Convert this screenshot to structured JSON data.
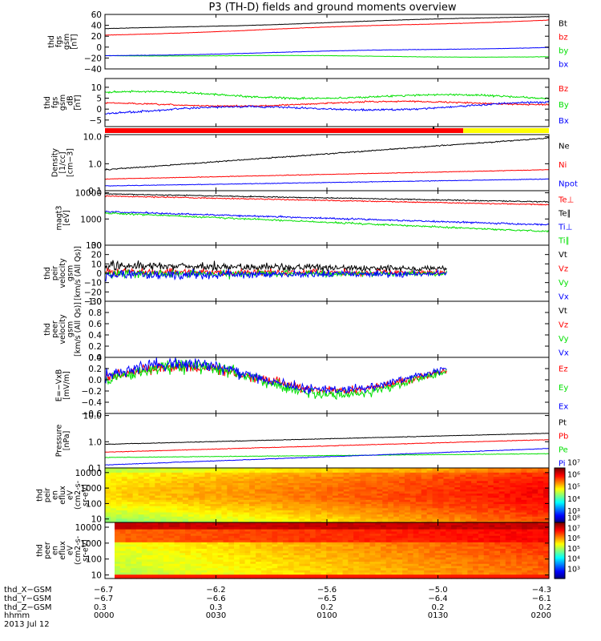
{
  "title": "P3 (TH-D) fields and ground moments overview",
  "colors": {
    "black": "#000000",
    "red": "#ff0000",
    "green": "#00e000",
    "blue": "#0000ff",
    "yellow": "#ffff00"
  },
  "chart_data": [
    {
      "type": "line",
      "ylabel": [
        "thd",
        "fgs",
        "gsm",
        "[nT]"
      ],
      "yticks": [
        "60",
        "40",
        "20",
        "0",
        "−20",
        "−40"
      ],
      "ylim": [
        -40,
        60
      ],
      "scale": "linear",
      "series": [
        {
          "name": "Bt",
          "color": "black",
          "start": 33,
          "end": 57,
          "noise": 0.3
        },
        {
          "name": "bz",
          "color": "red",
          "start": 22,
          "end": 50,
          "noise": 0.3
        },
        {
          "name": "by",
          "color": "green",
          "start": -15,
          "end": -18,
          "noise": 0.3
        },
        {
          "name": "bx",
          "color": "blue",
          "start": -16,
          "end": 0,
          "noise": 0.3
        }
      ]
    },
    {
      "type": "line",
      "ylabel": [
        "thd",
        "fgs",
        "gsm",
        "_dB",
        "[nT]"
      ],
      "yticks": [
        "10",
        "5",
        "0",
        "−5"
      ],
      "ylim": [
        -8,
        14
      ],
      "scale": "linear",
      "series": [
        {
          "name": "Bz",
          "color": "red",
          "start": 2,
          "end": 3,
          "noise": 0.3
        },
        {
          "name": "By",
          "color": "green",
          "start": 7,
          "end": 5,
          "noise": 0.4
        },
        {
          "name": "Bx",
          "color": "blue",
          "start": -1,
          "end": 2,
          "noise": 0.4
        }
      ]
    },
    {
      "type": "line",
      "ylabel": [
        "Density",
        "[1/cc]",
        "[cm−3]"
      ],
      "yticks": [
        "10.0",
        "1.0",
        "0.1"
      ],
      "ylim": [
        0.1,
        12
      ],
      "scale": "log",
      "series": [
        {
          "name": "Ne",
          "color": "black",
          "start": 0.6,
          "end": 9.0,
          "noise": 0.02
        },
        {
          "name": "Ni",
          "color": "red",
          "start": 0.27,
          "end": 0.6,
          "noise": 0.01
        },
        {
          "name": "Npot",
          "color": "blue",
          "start": 0.15,
          "end": 0.27,
          "noise": 0.01
        }
      ]
    },
    {
      "type": "line",
      "ylabel": [
        "magt3",
        "[eV]"
      ],
      "yticks": [
        "10000",
        "1000",
        "100"
      ],
      "ylim": [
        100,
        12000
      ],
      "scale": "log",
      "series": [
        {
          "name": "Te⊥",
          "color": "red",
          "start": 7500,
          "end": 3500,
          "noise": 0.02
        },
        {
          "name": "Te∥",
          "color": "black",
          "start": 9000,
          "end": 4500,
          "noise": 0.02
        },
        {
          "name": "Ti⊥",
          "color": "blue",
          "start": 1900,
          "end": 600,
          "noise": 0.03
        },
        {
          "name": "Ti∥",
          "color": "green",
          "start": 1700,
          "end": 330,
          "noise": 0.03
        }
      ]
    },
    {
      "type": "line",
      "ylabel": [
        "thd",
        "peir",
        "velocity",
        "gsm",
        "[km/s (All Qs)]"
      ],
      "yticks": [
        "30",
        "20",
        "10",
        "0",
        "−10",
        "−20",
        "−30"
      ],
      "ylim": [
        -30,
        30
      ],
      "scale": "linear",
      "data_end": 0.77,
      "series": [
        {
          "name": "Vt",
          "color": "black",
          "start": 8,
          "end": 4,
          "noise": 3.5
        },
        {
          "name": "Vz",
          "color": "red",
          "start": 1,
          "end": 1,
          "noise": 3.0
        },
        {
          "name": "Vy",
          "color": "green",
          "start": -1,
          "end": 0,
          "noise": 3.0
        },
        {
          "name": "Vx",
          "color": "blue",
          "start": -2,
          "end": 0,
          "noise": 3.5
        }
      ]
    },
    {
      "type": "line",
      "ylabel": [
        "thd",
        "peer",
        "velocity",
        "gsm",
        "[km/s (All Qs)]"
      ],
      "yticks": [
        "1.0",
        "0.8",
        "0.6",
        "0.4",
        "0.2",
        "0.0"
      ],
      "ylim": [
        0,
        1
      ],
      "scale": "linear",
      "series": [
        {
          "name": "Vt",
          "color": "black",
          "empty": true
        },
        {
          "name": "Vz",
          "color": "red",
          "empty": true
        },
        {
          "name": "Vy",
          "color": "green",
          "empty": true
        },
        {
          "name": "Vx",
          "color": "blue",
          "empty": true
        }
      ]
    },
    {
      "type": "line",
      "ylabel": [
        "E=−VxB",
        "[mV/m]"
      ],
      "yticks": [
        "0.4",
        "0.2",
        "0.0",
        "−0.2",
        "−0.4",
        "−0.6"
      ],
      "ylim": [
        -0.6,
        0.4
      ],
      "scale": "linear",
      "data_end": 0.77,
      "series": [
        {
          "name": "Ez",
          "color": "red",
          "start": 0.02,
          "end": 0.02,
          "noise": 0.07
        },
        {
          "name": "Ey",
          "color": "green",
          "start": -0.02,
          "end": 0.0,
          "noise": 0.09
        },
        {
          "name": "Ex",
          "color": "blue",
          "start": 0.05,
          "end": 0.05,
          "noise": 0.08
        }
      ]
    },
    {
      "type": "line",
      "ylabel": [
        "Pressure",
        "[nPa]"
      ],
      "yticks": [
        "10.0",
        "1.0",
        "0.1"
      ],
      "ylim": [
        0.1,
        12
      ],
      "scale": "log",
      "series": [
        {
          "name": "Pt",
          "color": "black",
          "start": 0.8,
          "end": 2.1,
          "noise": 0.01
        },
        {
          "name": "Pb",
          "color": "red",
          "start": 0.4,
          "end": 1.2,
          "noise": 0.01
        },
        {
          "name": "Pe",
          "color": "green",
          "start": 0.25,
          "end": 0.35,
          "noise": 0.01
        },
        {
          "name": "Pi",
          "color": "blue",
          "start": 0.13,
          "end": 0.55,
          "noise": 0.01
        }
      ]
    },
    {
      "type": "heatmap",
      "ylabel": [
        "thd",
        "peir",
        "en",
        "eflux",
        "eV",
        "(cm2-s-",
        "sr-eV)"
      ],
      "yticks": [
        "10000",
        "1000",
        "100",
        "10"
      ],
      "ylim": [
        6,
        20000
      ],
      "scale": "log",
      "colorbar_ticks": [
        "10⁷",
        "10⁶",
        "10⁵",
        "10⁴",
        "10³"
      ],
      "colorbar_range": [
        3,
        7.5
      ]
    },
    {
      "type": "heatmap",
      "ylabel": [
        "thd",
        "peer",
        "en",
        "eflux",
        "eV",
        "(cm2-s-",
        "sr-eV)"
      ],
      "yticks": [
        "10000",
        "1000",
        "100",
        "10"
      ],
      "ylim": [
        6,
        20000
      ],
      "scale": "log",
      "colorbar_ticks": [
        "10⁸",
        "10⁷",
        "10⁶",
        "10⁵",
        "10⁴",
        "10³"
      ],
      "colorbar_range": [
        3,
        8.5
      ]
    }
  ],
  "flag_bar": {
    "red_end_label": "0138"
  },
  "xaxis": {
    "row_labels": [
      "thd_X−GSM",
      "thd_Y−GSM",
      "thd_Z−GSM",
      "hhmm"
    ],
    "columns": [
      [
        "−6.7",
        "−6.7",
        "0.3",
        "0000"
      ],
      [
        "−6.2",
        "−6.6",
        "0.3",
        "0030"
      ],
      [
        "−5.6",
        "−6.5",
        "0.2",
        "0100"
      ],
      [
        "−5.0",
        "−6.4",
        "0.2",
        "0130"
      ],
      [
        "−4.3",
        "−6.1",
        "0.2",
        "0200"
      ]
    ],
    "date": "2013 Jul 12"
  }
}
